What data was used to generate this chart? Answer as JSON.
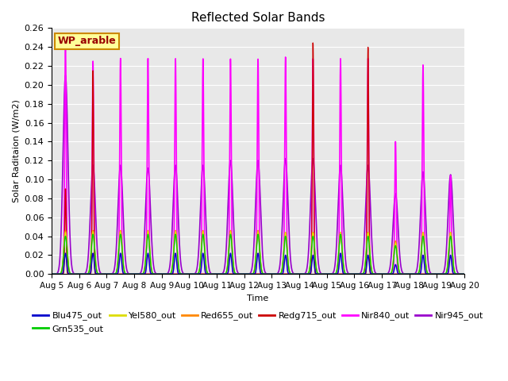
{
  "title": "Reflected Solar Bands",
  "xlabel": "Time",
  "ylabel": "Solar Raditaion (W/m2)",
  "annotation": "WP_arable",
  "ylim": [
    0.0,
    0.26
  ],
  "yticks": [
    0.0,
    0.02,
    0.04,
    0.06,
    0.08,
    0.1,
    0.12,
    0.14,
    0.16,
    0.18,
    0.2,
    0.22,
    0.24,
    0.26
  ],
  "xtick_labels": [
    "Aug 5",
    "Aug 6",
    "Aug 7",
    "Aug 8",
    "Aug 9",
    "Aug 10",
    "Aug 11",
    "Aug 12",
    "Aug 13",
    "Aug 14",
    "Aug 15",
    "Aug 16",
    "Aug 17",
    "Aug 18",
    "Aug 19",
    "Aug 20"
  ],
  "series": [
    {
      "label": "Blu475_out",
      "color": "#0000cc",
      "lw": 1.0
    },
    {
      "label": "Grn535_out",
      "color": "#00cc00",
      "lw": 1.0
    },
    {
      "label": "Yel580_out",
      "color": "#dddd00",
      "lw": 1.0
    },
    {
      "label": "Red655_out",
      "color": "#ff8800",
      "lw": 1.0
    },
    {
      "label": "Redg715_out",
      "color": "#cc0000",
      "lw": 1.0
    },
    {
      "label": "Nir840_out",
      "color": "#ff00ff",
      "lw": 1.2
    },
    {
      "label": "Nir945_out",
      "color": "#9900cc",
      "lw": 1.2
    }
  ],
  "background_color": "#e8e8e8",
  "annotation_bg": "#ffff99",
  "annotation_border": "#cc8800",
  "n_days": 15,
  "pts_per_day": 200,
  "sigma_narrow": 0.04,
  "sigma_wide": 0.09,
  "day_peaks_blu": [
    0.022,
    0.022,
    0.022,
    0.022,
    0.022,
    0.022,
    0.022,
    0.022,
    0.02,
    0.02,
    0.022,
    0.02,
    0.01,
    0.02,
    0.02
  ],
  "day_peaks_grn": [
    0.04,
    0.042,
    0.042,
    0.042,
    0.042,
    0.042,
    0.042,
    0.042,
    0.04,
    0.04,
    0.042,
    0.04,
    0.03,
    0.04,
    0.04
  ],
  "day_peaks_yel": [
    0.044,
    0.045,
    0.045,
    0.045,
    0.045,
    0.045,
    0.045,
    0.045,
    0.044,
    0.044,
    0.044,
    0.044,
    0.033,
    0.044,
    0.044
  ],
  "day_peaks_red": [
    0.046,
    0.046,
    0.046,
    0.046,
    0.046,
    0.046,
    0.046,
    0.046,
    0.044,
    0.044,
    0.044,
    0.044,
    0.035,
    0.044,
    0.044
  ],
  "day_peaks_redg": [
    0.09,
    0.215,
    0.0,
    0.0,
    0.0,
    0.0,
    0.0,
    0.0,
    0.0,
    0.245,
    0.0,
    0.24,
    0.0,
    0.0,
    0.0
  ],
  "day_peaks_nir840": [
    0.245,
    0.225,
    0.228,
    0.228,
    0.228,
    0.228,
    0.228,
    0.228,
    0.23,
    0.228,
    0.228,
    0.228,
    0.14,
    0.221,
    0.104
  ],
  "day_peaks_nir945": [
    0.21,
    0.115,
    0.115,
    0.112,
    0.115,
    0.115,
    0.12,
    0.12,
    0.122,
    0.122,
    0.115,
    0.115,
    0.085,
    0.108,
    0.105
  ]
}
